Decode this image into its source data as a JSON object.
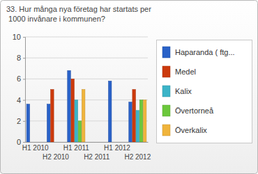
{
  "chart_data": {
    "type": "bar",
    "title": "33. Hur många nya företag har startats per 1000 invånare i kommunen?",
    "categories": [
      "H1 2010",
      "H2 2010",
      "H1 2011",
      "H2 2011",
      "H1 2012",
      "H2 2012"
    ],
    "series": [
      {
        "name": "Haparanda ( ftg...",
        "color": "#2a62c8",
        "values": [
          3.6,
          3.6,
          6.8,
          null,
          5.8,
          3.8
        ]
      },
      {
        "name": "Medel",
        "color": "#cc3a0c",
        "values": [
          null,
          5.0,
          6.0,
          null,
          null,
          5.0
        ]
      },
      {
        "name": "Kalix",
        "color": "#3cb4c8",
        "values": [
          null,
          null,
          4.0,
          null,
          null,
          3.0
        ]
      },
      {
        "name": "Övertorneå",
        "color": "#6cc83c",
        "values": [
          null,
          null,
          2.0,
          null,
          null,
          4.0
        ]
      },
      {
        "name": "Överkalix",
        "color": "#f0b43c",
        "values": [
          null,
          null,
          5.0,
          null,
          null,
          4.0
        ]
      }
    ],
    "ylim": [
      0,
      10
    ],
    "yticks": [
      0,
      2,
      4,
      6,
      8,
      10
    ],
    "grid": true,
    "legend": "right"
  }
}
